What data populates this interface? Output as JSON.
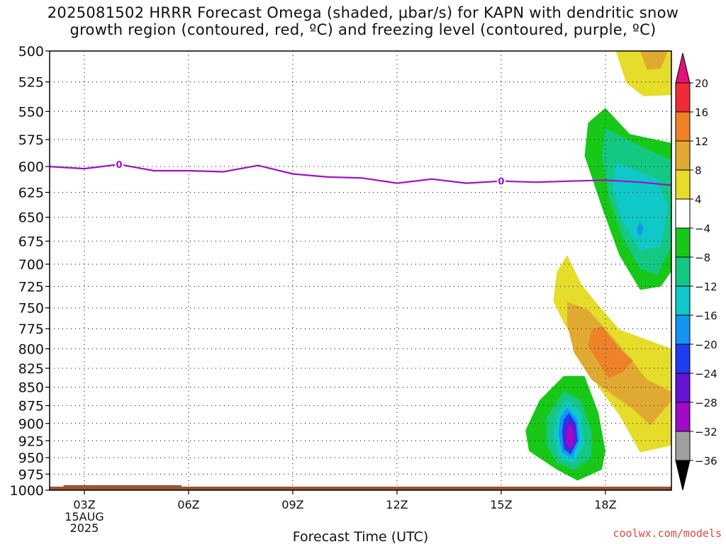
{
  "title": {
    "line1": "2025081502 HRRR Forecast Omega (shaded, μbar/s) for KAPN with dendritic snow",
    "line2": "growth region (contoured, red, ºC) and freezing level (contoured, purple, ºC)"
  },
  "watermark": "coolwx.com/models",
  "chart_data": {
    "type": "heatmap",
    "title": "2025081502 HRRR Forecast Omega (shaded, μbar/s) for KAPN with dendritic snow growth region (contoured, red, ºC) and freezing level (contoured, purple, ºC)",
    "xlabel": "Forecast Time (UTC)",
    "ylabel": "",
    "x_date_label": [
      "15AUG",
      "2025"
    ],
    "xlim_hours": [
      2,
      19.9
    ],
    "xticks": [
      {
        "hour": 3,
        "label": "03Z"
      },
      {
        "hour": 6,
        "label": "06Z"
      },
      {
        "hour": 9,
        "label": "09Z"
      },
      {
        "hour": 12,
        "label": "12Z"
      },
      {
        "hour": 15,
        "label": "15Z"
      },
      {
        "hour": 18,
        "label": "18Z"
      }
    ],
    "ylim": [
      1000,
      500
    ],
    "yticks": [
      500,
      525,
      550,
      575,
      600,
      625,
      650,
      675,
      700,
      725,
      750,
      775,
      800,
      825,
      850,
      875,
      900,
      925,
      950,
      975,
      1000
    ],
    "y_scale": "log-pressure",
    "grid": true,
    "colorbar": {
      "labels": [
        "20",
        "16",
        "12",
        "8",
        "4",
        "−4",
        "−8",
        "−12",
        "−16",
        "−20",
        "−24",
        "−28",
        "−32",
        "−36"
      ],
      "bins": [
        {
          "range": [
            20,
            null
          ],
          "color": "#e0147a"
        },
        {
          "range": [
            16,
            20
          ],
          "color": "#ef2b3a"
        },
        {
          "range": [
            12,
            16
          ],
          "color": "#ef8229"
        },
        {
          "range": [
            8,
            12
          ],
          "color": "#e0aa32"
        },
        {
          "range": [
            4,
            8
          ],
          "color": "#e6dc2a"
        },
        {
          "range": [
            -4,
            4
          ],
          "color": "#ffffff"
        },
        {
          "range": [
            -8,
            -4
          ],
          "color": "#18c818"
        },
        {
          "range": [
            -12,
            -8
          ],
          "color": "#14c882"
        },
        {
          "range": [
            -16,
            -12
          ],
          "color": "#10c8c8"
        },
        {
          "range": [
            -20,
            -16
          ],
          "color": "#1496f0"
        },
        {
          "range": [
            -24,
            -20
          ],
          "color": "#1e3cf0"
        },
        {
          "range": [
            -28,
            -24
          ],
          "color": "#6414d2"
        },
        {
          "range": [
            -32,
            -28
          ],
          "color": "#a00ac8"
        },
        {
          "range": [
            -36,
            -32
          ],
          "color": "#a0a0a0"
        },
        {
          "range": [
            null,
            -36
          ],
          "color": "#000000"
        }
      ]
    },
    "freezing_level": {
      "label": "0",
      "color": "#a010c8",
      "points": [
        {
          "hour": 2.0,
          "p": 600
        },
        {
          "hour": 3.0,
          "p": 602
        },
        {
          "hour": 4.0,
          "p": 598
        },
        {
          "hour": 5.0,
          "p": 604
        },
        {
          "hour": 6.0,
          "p": 604
        },
        {
          "hour": 7.0,
          "p": 605
        },
        {
          "hour": 8.0,
          "p": 599
        },
        {
          "hour": 9.0,
          "p": 607
        },
        {
          "hour": 10.0,
          "p": 610
        },
        {
          "hour": 11.0,
          "p": 611
        },
        {
          "hour": 12.0,
          "p": 616
        },
        {
          "hour": 13.0,
          "p": 612
        },
        {
          "hour": 14.0,
          "p": 616
        },
        {
          "hour": 15.0,
          "p": 614
        },
        {
          "hour": 16.0,
          "p": 615
        },
        {
          "hour": 17.0,
          "p": 614
        },
        {
          "hour": 18.0,
          "p": 613
        },
        {
          "hour": 19.0,
          "p": 615
        },
        {
          "hour": 19.9,
          "p": 618
        }
      ],
      "label_hours": [
        4.0,
        15.0
      ]
    },
    "surface_terrain_color": "#a0522d",
    "shaded_regions": [
      {
        "name": "upper-positive-yellow",
        "value": 4,
        "color": "#e6dc2a",
        "polygon": [
          [
            18.3,
            500
          ],
          [
            19.9,
            500
          ],
          [
            19.9,
            536
          ],
          [
            19.1,
            537
          ],
          [
            18.6,
            526
          ]
        ]
      },
      {
        "name": "upper-positive-gold",
        "value": 8,
        "color": "#e0aa32",
        "polygon": [
          [
            19.0,
            500
          ],
          [
            19.8,
            500
          ],
          [
            19.6,
            514
          ],
          [
            19.2,
            515
          ]
        ]
      },
      {
        "name": "mid-negative-green",
        "value": -4,
        "color": "#18c818",
        "polygon": [
          [
            18.0,
            547
          ],
          [
            18.7,
            570
          ],
          [
            19.9,
            578
          ],
          [
            19.9,
            708
          ],
          [
            19.6,
            725
          ],
          [
            19.0,
            729
          ],
          [
            18.4,
            690
          ],
          [
            17.9,
            640
          ],
          [
            17.4,
            590
          ],
          [
            17.5,
            560
          ]
        ]
      },
      {
        "name": "mid-negative-seagreen",
        "value": -8,
        "color": "#14c882",
        "polygon": [
          [
            18.0,
            565
          ],
          [
            19.2,
            584
          ],
          [
            19.9,
            594
          ],
          [
            19.9,
            680
          ],
          [
            19.5,
            712
          ],
          [
            19.0,
            705
          ],
          [
            18.5,
            672
          ],
          [
            18.1,
            630
          ],
          [
            17.9,
            590
          ]
        ]
      },
      {
        "name": "mid-negative-cyan",
        "value": -12,
        "color": "#10c8c8",
        "polygon": [
          [
            18.3,
            596
          ],
          [
            19.5,
            612
          ],
          [
            19.8,
            640
          ],
          [
            19.6,
            680
          ],
          [
            19.0,
            685
          ],
          [
            18.5,
            655
          ],
          [
            18.2,
            622
          ]
        ]
      },
      {
        "name": "mid-negative-blue",
        "value": -16,
        "color": "#1496f0",
        "polygon": [
          [
            19.0,
            654
          ],
          [
            19.1,
            662
          ],
          [
            19.0,
            670
          ],
          [
            18.9,
            664
          ]
        ]
      },
      {
        "name": "lower-positive-yellow",
        "value": 4,
        "color": "#e6dc2a",
        "polygon": [
          [
            16.6,
            709
          ],
          [
            16.9,
            690
          ],
          [
            17.3,
            722
          ],
          [
            17.7,
            742
          ],
          [
            18.4,
            776
          ],
          [
            19.9,
            800
          ],
          [
            19.9,
            932
          ],
          [
            19.0,
            942
          ],
          [
            18.4,
            888
          ],
          [
            17.8,
            850
          ],
          [
            17.4,
            810
          ],
          [
            16.8,
            768
          ],
          [
            16.5,
            742
          ]
        ]
      },
      {
        "name": "lower-positive-gold",
        "value": 8,
        "color": "#e0aa32",
        "polygon": [
          [
            16.9,
            743
          ],
          [
            17.5,
            752
          ],
          [
            18.3,
            790
          ],
          [
            19.2,
            840
          ],
          [
            19.9,
            856
          ],
          [
            19.9,
            868
          ],
          [
            19.3,
            903
          ],
          [
            18.8,
            880
          ],
          [
            18.2,
            860
          ],
          [
            17.6,
            840
          ],
          [
            17.1,
            805
          ],
          [
            16.9,
            770
          ]
        ]
      },
      {
        "name": "lower-positive-orange",
        "value": 12,
        "color": "#ef8229",
        "polygon": [
          [
            17.6,
            776
          ],
          [
            17.9,
            772
          ],
          [
            18.4,
            800
          ],
          [
            18.8,
            815
          ],
          [
            18.5,
            830
          ],
          [
            18.1,
            838
          ],
          [
            17.8,
            818
          ],
          [
            17.5,
            796
          ]
        ]
      },
      {
        "name": "lower-negative-green",
        "value": -4,
        "color": "#18c818",
        "polygon": [
          [
            16.8,
            835
          ],
          [
            17.4,
            835
          ],
          [
            17.8,
            885
          ],
          [
            18.0,
            940
          ],
          [
            17.9,
            968
          ],
          [
            17.2,
            985
          ],
          [
            16.6,
            968
          ],
          [
            15.8,
            940
          ],
          [
            15.7,
            910
          ],
          [
            16.1,
            868
          ]
        ]
      },
      {
        "name": "lower-negative-seagreen",
        "value": -8,
        "color": "#14c882",
        "polygon": [
          [
            16.8,
            855
          ],
          [
            17.3,
            868
          ],
          [
            17.6,
            912
          ],
          [
            17.6,
            950
          ],
          [
            17.1,
            968
          ],
          [
            16.6,
            958
          ],
          [
            16.3,
            930
          ],
          [
            16.3,
            893
          ]
        ]
      },
      {
        "name": "lower-negative-cyan",
        "value": -12,
        "color": "#10c8c8",
        "polygon": [
          [
            16.9,
            867
          ],
          [
            17.3,
            885
          ],
          [
            17.4,
            930
          ],
          [
            17.1,
            958
          ],
          [
            16.7,
            952
          ],
          [
            16.5,
            920
          ],
          [
            16.6,
            888
          ]
        ]
      },
      {
        "name": "lower-negative-blue",
        "value": -16,
        "color": "#1496f0",
        "polygon": [
          [
            16.9,
            878
          ],
          [
            17.2,
            895
          ],
          [
            17.25,
            925
          ],
          [
            17.05,
            950
          ],
          [
            16.75,
            942
          ],
          [
            16.65,
            915
          ],
          [
            16.7,
            892
          ]
        ]
      },
      {
        "name": "lower-negative-darkblue",
        "value": -20,
        "color": "#1e3cf0",
        "polygon": [
          [
            16.95,
            885
          ],
          [
            17.15,
            900
          ],
          [
            17.2,
            925
          ],
          [
            17.0,
            945
          ],
          [
            16.8,
            937
          ],
          [
            16.75,
            912
          ],
          [
            16.8,
            895
          ]
        ]
      },
      {
        "name": "lower-negative-indigo",
        "value": -24,
        "color": "#6414d2",
        "polygon": [
          [
            16.97,
            893
          ],
          [
            17.12,
            905
          ],
          [
            17.14,
            925
          ],
          [
            17.0,
            940
          ],
          [
            16.85,
            932
          ],
          [
            16.82,
            910
          ]
        ]
      },
      {
        "name": "lower-negative-purple",
        "value": -28,
        "color": "#a00ac8",
        "polygon": [
          [
            16.98,
            900
          ],
          [
            17.1,
            912
          ],
          [
            17.1,
            930
          ],
          [
            16.98,
            938
          ],
          [
            16.88,
            928
          ],
          [
            16.88,
            910
          ]
        ]
      }
    ]
  }
}
